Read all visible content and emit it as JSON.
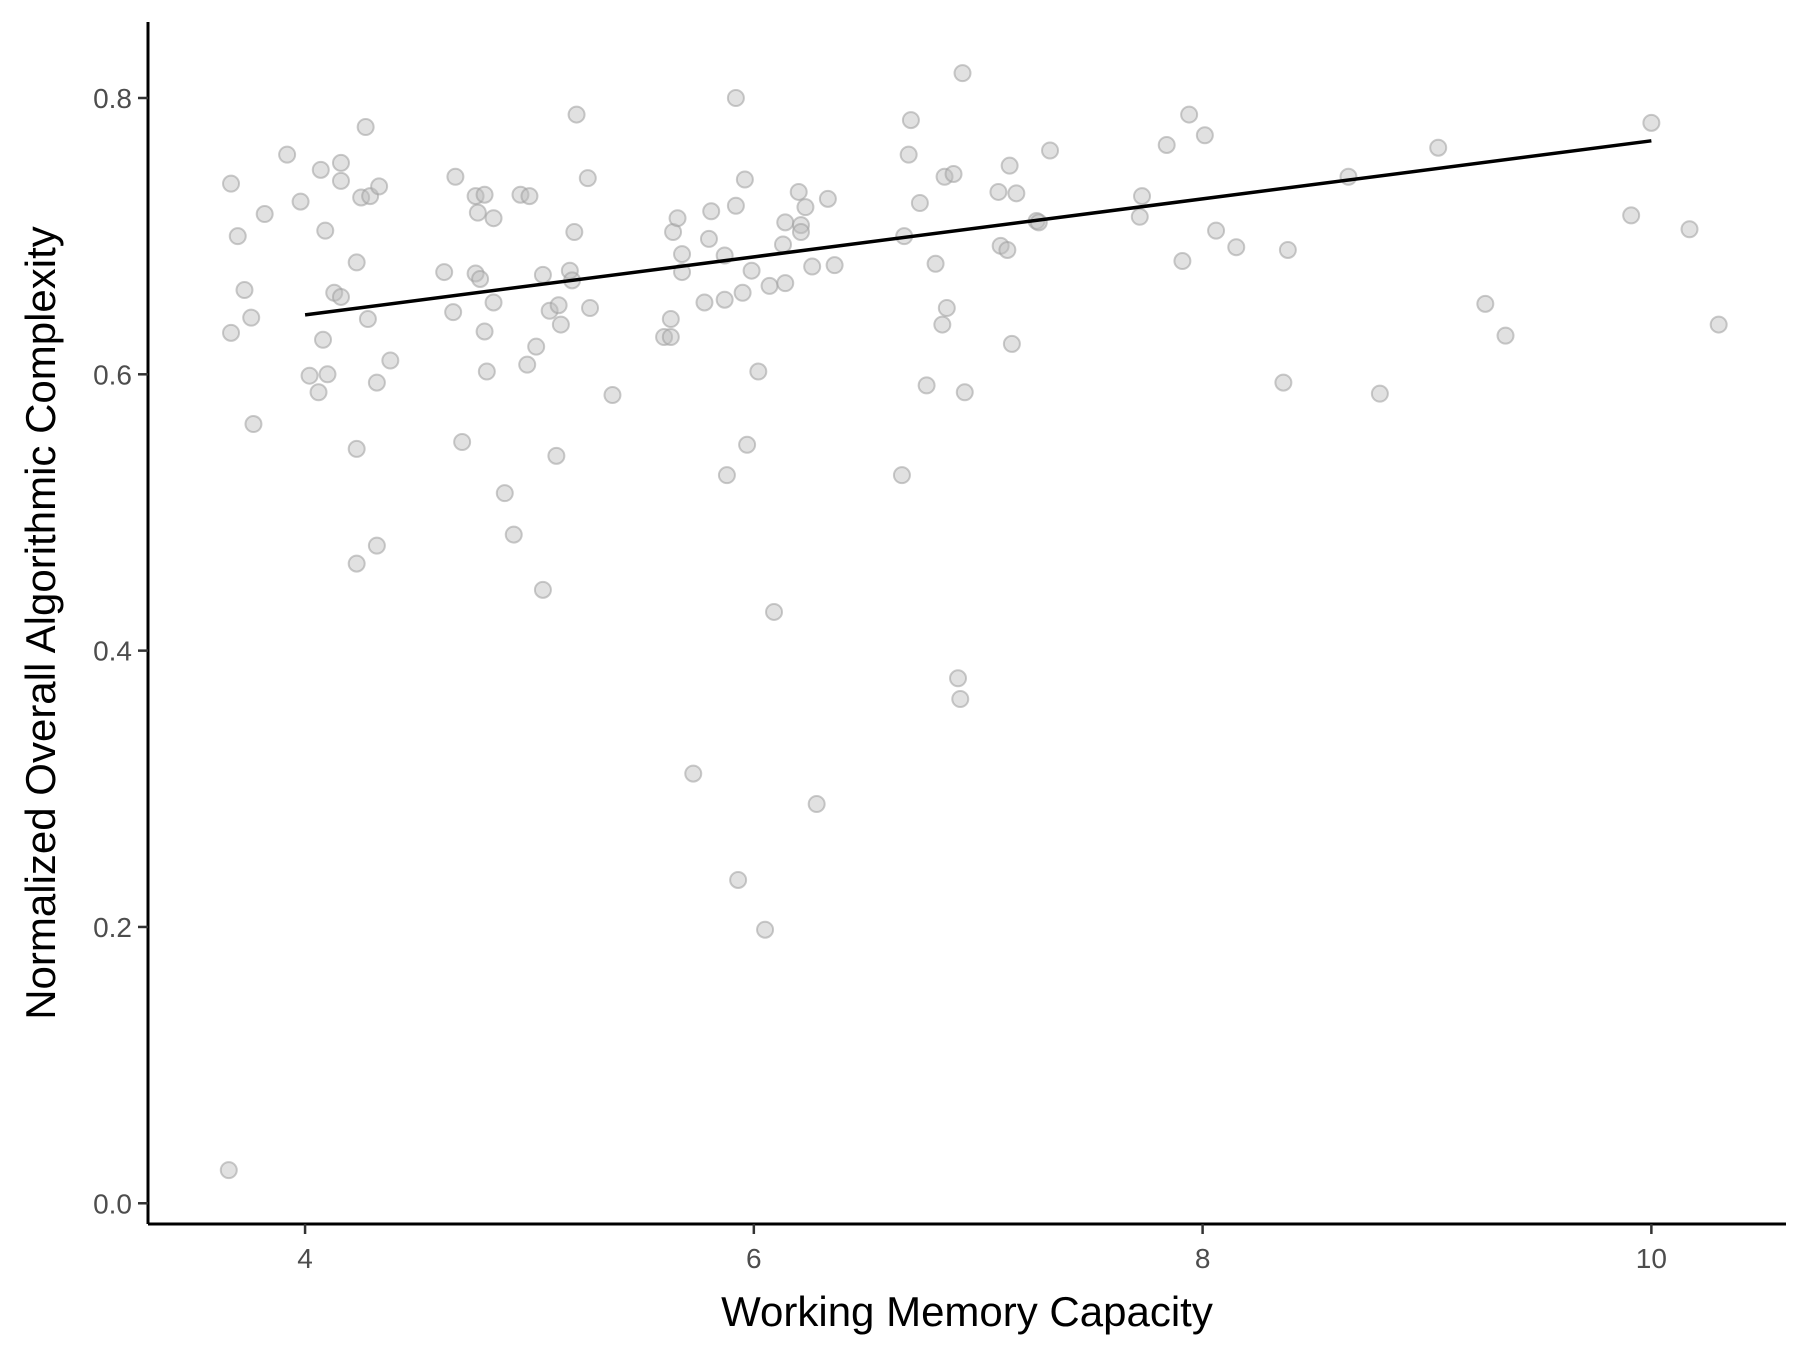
{
  "chart_data": {
    "type": "scatter",
    "title": "",
    "xlabel": "Working Memory Capacity",
    "ylabel": "Normalized Overall Algorithmic Complexity",
    "xlim": [
      3.3,
      10.6
    ],
    "ylim": [
      -0.015,
      0.855
    ],
    "x_ticks": [
      4,
      6,
      8,
      10
    ],
    "y_ticks": [
      0.0,
      0.2,
      0.4,
      0.6,
      0.8
    ],
    "x_tick_labels": [
      "4",
      "6",
      "8",
      "10"
    ],
    "y_tick_labels": [
      "0.0",
      "0.2",
      "0.4",
      "0.6",
      "0.8"
    ],
    "grid": false,
    "legend": "none",
    "point_color": "#bdbdbd",
    "line_color": "#000000",
    "trend_line": {
      "x": [
        4.0,
        10.0
      ],
      "y": [
        0.643,
        0.769
      ]
    },
    "points": [
      [
        3.67,
        0.738
      ],
      [
        3.7,
        0.7
      ],
      [
        3.73,
        0.661
      ],
      [
        3.67,
        0.63
      ],
      [
        3.76,
        0.641
      ],
      [
        3.77,
        0.564
      ],
      [
        3.82,
        0.716
      ],
      [
        3.92,
        0.759
      ],
      [
        3.98,
        0.725
      ],
      [
        4.02,
        0.599
      ],
      [
        4.06,
        0.587
      ],
      [
        4.07,
        0.748
      ],
      [
        4.08,
        0.625
      ],
      [
        4.09,
        0.704
      ],
      [
        4.1,
        0.6
      ],
      [
        4.13,
        0.659
      ],
      [
        4.16,
        0.74
      ],
      [
        4.16,
        0.656
      ],
      [
        4.16,
        0.753
      ],
      [
        4.23,
        0.681
      ],
      [
        4.23,
        0.546
      ],
      [
        4.23,
        0.463
      ],
      [
        4.25,
        0.728
      ],
      [
        4.27,
        0.779
      ],
      [
        4.28,
        0.64
      ],
      [
        4.29,
        0.729
      ],
      [
        4.32,
        0.594
      ],
      [
        4.32,
        0.476
      ],
      [
        4.33,
        0.736
      ],
      [
        4.38,
        0.61
      ],
      [
        4.62,
        0.674
      ],
      [
        4.66,
        0.645
      ],
      [
        4.67,
        0.743
      ],
      [
        4.7,
        0.551
      ],
      [
        4.76,
        0.729
      ],
      [
        4.76,
        0.673
      ],
      [
        4.77,
        0.717
      ],
      [
        4.78,
        0.669
      ],
      [
        4.8,
        0.73
      ],
      [
        4.8,
        0.631
      ],
      [
        4.81,
        0.602
      ],
      [
        4.84,
        0.713
      ],
      [
        4.84,
        0.652
      ],
      [
        4.89,
        0.514
      ],
      [
        4.93,
        0.484
      ],
      [
        4.96,
        0.73
      ],
      [
        4.99,
        0.607
      ],
      [
        5.0,
        0.729
      ],
      [
        5.03,
        0.62
      ],
      [
        5.06,
        0.672
      ],
      [
        5.06,
        0.444
      ],
      [
        5.09,
        0.646
      ],
      [
        5.12,
        0.541
      ],
      [
        5.13,
        0.65
      ],
      [
        5.14,
        0.636
      ],
      [
        5.18,
        0.675
      ],
      [
        5.19,
        0.668
      ],
      [
        5.2,
        0.703
      ],
      [
        5.21,
        0.788
      ],
      [
        5.26,
        0.742
      ],
      [
        5.27,
        0.648
      ],
      [
        5.37,
        0.585
      ],
      [
        5.6,
        0.627
      ],
      [
        5.63,
        0.627
      ],
      [
        5.63,
        0.64
      ],
      [
        5.64,
        0.703
      ],
      [
        5.66,
        0.713
      ],
      [
        5.68,
        0.687
      ],
      [
        5.68,
        0.674
      ],
      [
        5.73,
        0.311
      ],
      [
        5.78,
        0.652
      ],
      [
        5.8,
        0.698
      ],
      [
        5.81,
        0.718
      ],
      [
        5.87,
        0.654
      ],
      [
        5.87,
        0.686
      ],
      [
        5.88,
        0.527
      ],
      [
        5.92,
        0.722
      ],
      [
        5.92,
        0.8
      ],
      [
        5.93,
        0.234
      ],
      [
        5.95,
        0.659
      ],
      [
        5.96,
        0.741
      ],
      [
        5.97,
        0.549
      ],
      [
        5.99,
        0.675
      ],
      [
        6.02,
        0.602
      ],
      [
        6.05,
        0.198
      ],
      [
        6.07,
        0.664
      ],
      [
        6.09,
        0.428
      ],
      [
        6.13,
        0.694
      ],
      [
        6.14,
        0.71
      ],
      [
        6.14,
        0.666
      ],
      [
        6.2,
        0.732
      ],
      [
        6.21,
        0.708
      ],
      [
        6.21,
        0.703
      ],
      [
        6.23,
        0.721
      ],
      [
        6.26,
        0.678
      ],
      [
        6.28,
        0.289
      ],
      [
        6.33,
        0.727
      ],
      [
        6.36,
        0.679
      ],
      [
        6.66,
        0.527
      ],
      [
        6.67,
        0.7
      ],
      [
        6.69,
        0.759
      ],
      [
        6.7,
        0.784
      ],
      [
        6.74,
        0.724
      ],
      [
        6.77,
        0.592
      ],
      [
        6.81,
        0.68
      ],
      [
        6.84,
        0.636
      ],
      [
        6.85,
        0.743
      ],
      [
        6.86,
        0.648
      ],
      [
        6.89,
        0.745
      ],
      [
        6.91,
        0.38
      ],
      [
        6.92,
        0.365
      ],
      [
        6.93,
        0.818
      ],
      [
        6.94,
        0.587
      ],
      [
        7.09,
        0.732
      ],
      [
        7.1,
        0.693
      ],
      [
        7.13,
        0.69
      ],
      [
        7.14,
        0.751
      ],
      [
        7.15,
        0.622
      ],
      [
        7.17,
        0.731
      ],
      [
        7.26,
        0.711
      ],
      [
        7.27,
        0.71
      ],
      [
        7.32,
        0.762
      ],
      [
        7.72,
        0.714
      ],
      [
        7.73,
        0.729
      ],
      [
        7.84,
        0.766
      ],
      [
        7.91,
        0.682
      ],
      [
        7.94,
        0.788
      ],
      [
        8.01,
        0.773
      ],
      [
        8.06,
        0.704
      ],
      [
        8.15,
        0.692
      ],
      [
        8.36,
        0.594
      ],
      [
        8.38,
        0.69
      ],
      [
        8.65,
        0.743
      ],
      [
        8.79,
        0.586
      ],
      [
        9.05,
        0.764
      ],
      [
        9.26,
        0.651
      ],
      [
        9.35,
        0.628
      ],
      [
        9.91,
        0.715
      ],
      [
        10.0,
        0.782
      ],
      [
        10.17,
        0.705
      ],
      [
        10.3,
        0.636
      ],
      [
        3.66,
        0.024
      ]
    ]
  }
}
